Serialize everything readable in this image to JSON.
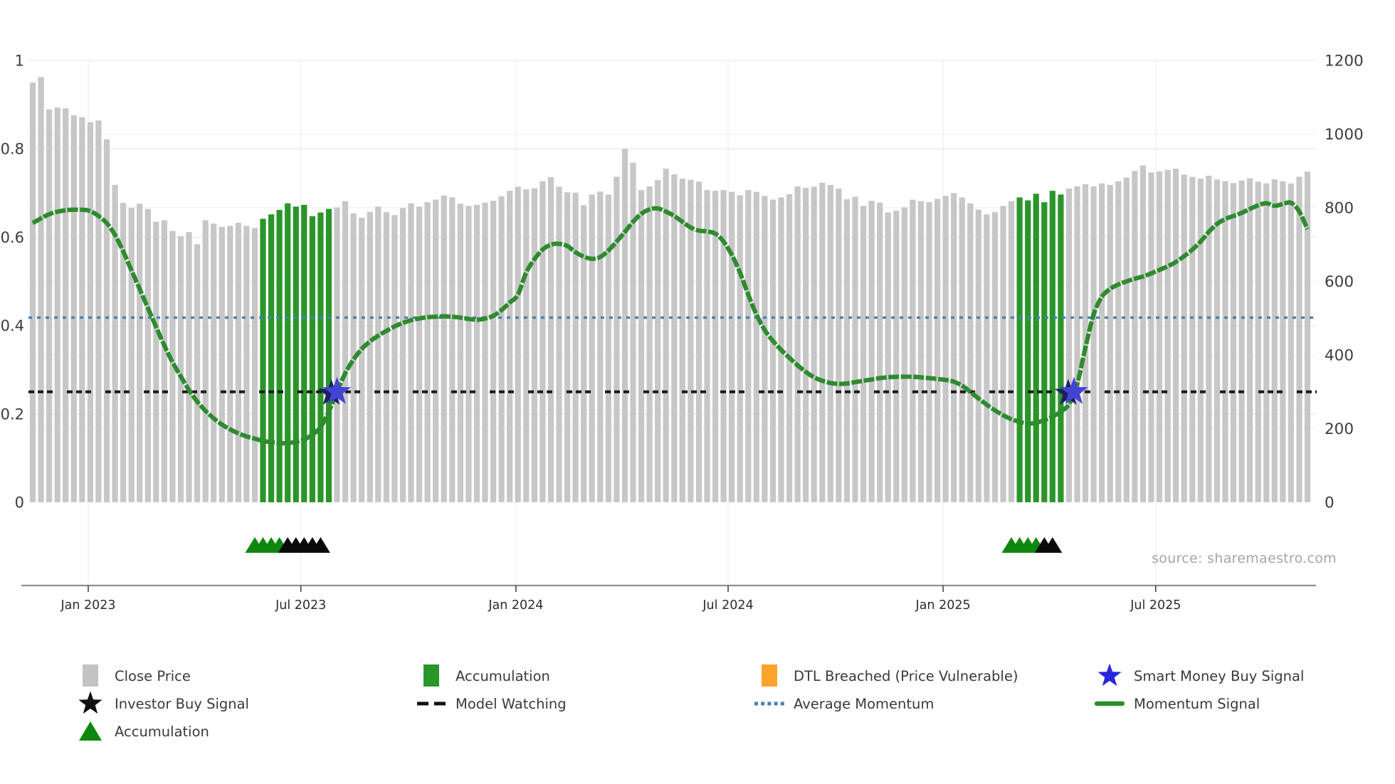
{
  "chart_data": {
    "type": "bar+line",
    "title": "",
    "source_text": "source: sharemaestro.com",
    "x_axis": {
      "tick_labels": [
        "Jan 2023",
        "Jul 2023",
        "Jan 2024",
        "Jul 2024",
        "Jan 2025",
        "Jul 2025"
      ],
      "tick_weeks": [
        6.75,
        32.6,
        58.75,
        84.55,
        110.7,
        136.55
      ]
    },
    "left_axis": {
      "range": [
        0,
        1
      ],
      "ticks": [
        0,
        0.2,
        0.4,
        0.6,
        0.8,
        1
      ],
      "tick_labels": [
        "0",
        "0.2",
        "0.4",
        "0.6",
        "0.8",
        "1"
      ]
    },
    "right_axis": {
      "range": [
        0,
        1200
      ],
      "ticks": [
        0,
        200,
        400,
        600,
        800,
        1000,
        1200
      ],
      "tick_labels": [
        "0",
        "200",
        "400",
        "600",
        "800",
        "1000",
        "1200"
      ]
    },
    "close_price": {
      "name": "Close Price",
      "values": [
        1140,
        1155,
        1067,
        1072,
        1070,
        1051,
        1046,
        1032,
        1037,
        986,
        862,
        813,
        800,
        811,
        797,
        762,
        766,
        737,
        723,
        734,
        701,
        766,
        757,
        748,
        751,
        759,
        751,
        745,
        770,
        782,
        794,
        812,
        803,
        808,
        777,
        787,
        797,
        801,
        818,
        785,
        773,
        789,
        803,
        788,
        780,
        799,
        812,
        803,
        815,
        822,
        833,
        828,
        811,
        805,
        808,
        814,
        819,
        831,
        846,
        857,
        850,
        853,
        872,
        883,
        857,
        842,
        841,
        807,
        836,
        844,
        836,
        884,
        960,
        922,
        848,
        858,
        875,
        906,
        891,
        879,
        876,
        871,
        848,
        846,
        848,
        843,
        834,
        848,
        843,
        832,
        822,
        828,
        837,
        858,
        854,
        857,
        868,
        862,
        852,
        823,
        830,
        805,
        819,
        814,
        787,
        792,
        801,
        822,
        818,
        815,
        824,
        832,
        840,
        828,
        812,
        795,
        782,
        788,
        805,
        818,
        828,
        820,
        838,
        815,
        846,
        836,
        852,
        858,
        864,
        858,
        866,
        862,
        872,
        882,
        900,
        915,
        896,
        899,
        903,
        906,
        890,
        884,
        879,
        887,
        877,
        872,
        867,
        874,
        880,
        871,
        866,
        877,
        872,
        866,
        884,
        898
      ]
    },
    "accumulation_bar_indices": [
      28,
      29,
      30,
      31,
      32,
      33,
      34,
      35,
      36,
      120,
      121,
      122,
      123,
      124,
      125
    ],
    "accumulation_periods_weeks": [
      [
        28,
        36
      ],
      [
        120,
        125
      ]
    ],
    "momentum_signal": {
      "name": "Momentum Signal",
      "points": [
        [
          0,
          0.632
        ],
        [
          2,
          0.652
        ],
        [
          4,
          0.661
        ],
        [
          6,
          0.662
        ],
        [
          7,
          0.659
        ],
        [
          8,
          0.648
        ],
        [
          9,
          0.632
        ],
        [
          10,
          0.605
        ],
        [
          11,
          0.568
        ],
        [
          12,
          0.525
        ],
        [
          13,
          0.483
        ],
        [
          14,
          0.44
        ],
        [
          15,
          0.397
        ],
        [
          16,
          0.355
        ],
        [
          17,
          0.317
        ],
        [
          18,
          0.285
        ],
        [
          19,
          0.254
        ],
        [
          20,
          0.228
        ],
        [
          21,
          0.207
        ],
        [
          22,
          0.19
        ],
        [
          23,
          0.176
        ],
        [
          24,
          0.165
        ],
        [
          25,
          0.156
        ],
        [
          26,
          0.149
        ],
        [
          27,
          0.144
        ],
        [
          28,
          0.139
        ],
        [
          29,
          0.136
        ],
        [
          30,
          0.134
        ],
        [
          31,
          0.134
        ],
        [
          32,
          0.137
        ],
        [
          33,
          0.142
        ],
        [
          34,
          0.153
        ],
        [
          35,
          0.17
        ],
        [
          36,
          0.205
        ],
        [
          37,
          0.25
        ],
        [
          38,
          0.292
        ],
        [
          39,
          0.323
        ],
        [
          40,
          0.347
        ],
        [
          41,
          0.364
        ],
        [
          42,
          0.377
        ],
        [
          43,
          0.388
        ],
        [
          44,
          0.398
        ],
        [
          45,
          0.406
        ],
        [
          46,
          0.412
        ],
        [
          47,
          0.416
        ],
        [
          48,
          0.419
        ],
        [
          49,
          0.42
        ],
        [
          50,
          0.421
        ],
        [
          51,
          0.42
        ],
        [
          52,
          0.418
        ],
        [
          53,
          0.415
        ],
        [
          54,
          0.413
        ],
        [
          55,
          0.416
        ],
        [
          56,
          0.422
        ],
        [
          57,
          0.435
        ],
        [
          58,
          0.452
        ],
        [
          59,
          0.47
        ],
        [
          60,
          0.52
        ],
        [
          61,
          0.55
        ],
        [
          62,
          0.572
        ],
        [
          63,
          0.583
        ],
        [
          64,
          0.585
        ],
        [
          65,
          0.58
        ],
        [
          66,
          0.566
        ],
        [
          67,
          0.556
        ],
        [
          68,
          0.551
        ],
        [
          69,
          0.555
        ],
        [
          70,
          0.57
        ],
        [
          71,
          0.59
        ],
        [
          72,
          0.612
        ],
        [
          73,
          0.635
        ],
        [
          74,
          0.653
        ],
        [
          75,
          0.663
        ],
        [
          76,
          0.665
        ],
        [
          77,
          0.658
        ],
        [
          78,
          0.648
        ],
        [
          79,
          0.635
        ],
        [
          80,
          0.622
        ],
        [
          81,
          0.615
        ],
        [
          82,
          0.613
        ],
        [
          83,
          0.608
        ],
        [
          84,
          0.59
        ],
        [
          85,
          0.56
        ],
        [
          86,
          0.52
        ],
        [
          87,
          0.47
        ],
        [
          88,
          0.425
        ],
        [
          89,
          0.39
        ],
        [
          90,
          0.365
        ],
        [
          91,
          0.345
        ],
        [
          92,
          0.327
        ],
        [
          93,
          0.31
        ],
        [
          94,
          0.295
        ],
        [
          95,
          0.283
        ],
        [
          96,
          0.275
        ],
        [
          97,
          0.27
        ],
        [
          98,
          0.268
        ],
        [
          99,
          0.269
        ],
        [
          100,
          0.272
        ],
        [
          101,
          0.275
        ],
        [
          102,
          0.278
        ],
        [
          103,
          0.281
        ],
        [
          104,
          0.283
        ],
        [
          105,
          0.284
        ],
        [
          107,
          0.284
        ],
        [
          109,
          0.281
        ],
        [
          110,
          0.279
        ],
        [
          111,
          0.277
        ],
        [
          112,
          0.273
        ],
        [
          113,
          0.264
        ],
        [
          114,
          0.25
        ],
        [
          115,
          0.235
        ],
        [
          116,
          0.221
        ],
        [
          117,
          0.208
        ],
        [
          118,
          0.197
        ],
        [
          119,
          0.188
        ],
        [
          120,
          0.182
        ],
        [
          121,
          0.178
        ],
        [
          122,
          0.18
        ],
        [
          123,
          0.186
        ],
        [
          124,
          0.194
        ],
        [
          125,
          0.205
        ],
        [
          126,
          0.222
        ],
        [
          127,
          0.268
        ],
        [
          128,
          0.35
        ],
        [
          129,
          0.425
        ],
        [
          130,
          0.465
        ],
        [
          131,
          0.483
        ],
        [
          132,
          0.493
        ],
        [
          133,
          0.5
        ],
        [
          134,
          0.506
        ],
        [
          135,
          0.511
        ],
        [
          136,
          0.518
        ],
        [
          137,
          0.526
        ],
        [
          138,
          0.534
        ],
        [
          139,
          0.544
        ],
        [
          140,
          0.557
        ],
        [
          141,
          0.572
        ],
        [
          142,
          0.59
        ],
        [
          143,
          0.612
        ],
        [
          144,
          0.63
        ],
        [
          145,
          0.641
        ],
        [
          146,
          0.648
        ],
        [
          147,
          0.655
        ],
        [
          148,
          0.664
        ],
        [
          149,
          0.672
        ],
        [
          150,
          0.677
        ],
        [
          151,
          0.671
        ],
        [
          152,
          0.675
        ],
        [
          153,
          0.678
        ],
        [
          154,
          0.658
        ],
        [
          155,
          0.618
        ]
      ]
    },
    "average_momentum": {
      "name": "Average Momentum",
      "value": 0.418
    },
    "model_watching": {
      "name": "Model Watching",
      "value": 0.25
    },
    "smart_money_buy_signals": [
      {
        "week": 37,
        "value": 0.25
      },
      {
        "week": 126.6,
        "value": 0.25
      }
    ],
    "investor_buy_signals": [
      {
        "week": 37,
        "value": 0.25
      },
      {
        "week": 126.6,
        "value": 0.25
      }
    ],
    "accumulation_triangle_weeks": [
      27,
      28,
      29,
      30,
      119,
      120,
      121,
      122
    ],
    "investor_triangle_weeks": [
      31,
      32,
      33,
      34,
      35,
      123,
      124
    ],
    "colors": {
      "bar_gray": "#c7c7c7",
      "bar_green": "#2a962a",
      "momentum_line": "#2e8b2e",
      "average_momentum": "#4682B4",
      "model_watching": "#1a1a1a",
      "smart_money_star": "#4444d4",
      "investor_star": "#202060",
      "triangle_green": "#0E870E",
      "triangle_black": "#0b0b0b",
      "axis_line": "#8f8f8f",
      "tick_text": "#3c3c3c",
      "x_label_text": "#2d2d2d",
      "source_text": "#a5a5a5",
      "grid_left": "#e7ebf2",
      "grid_right": "#eef1f5",
      "grid_vertical": "#ededed"
    }
  },
  "legend": {
    "items": [
      {
        "key": "close-price",
        "row": 0,
        "col": 0,
        "marker": "square",
        "color": "#c3c3c3",
        "label": "Close Price"
      },
      {
        "key": "accumulation-bar",
        "row": 0,
        "col": 1,
        "marker": "square",
        "color": "#2a962a",
        "label": "Accumulation"
      },
      {
        "key": "dtl-breached",
        "row": 0,
        "col": 2,
        "marker": "square",
        "color": "#FBA32A",
        "label": "DTL Breached (Price Vulnerable)"
      },
      {
        "key": "smart-money-buy",
        "row": 0,
        "col": 3,
        "marker": "star",
        "color": "#2727DF",
        "label": "Smart Money Buy Signal"
      },
      {
        "key": "investor-buy",
        "row": 1,
        "col": 0,
        "marker": "star",
        "color": "#111111",
        "label": "Investor Buy Signal"
      },
      {
        "key": "model-watching",
        "row": 1,
        "col": 1,
        "marker": "dashes",
        "color": "#111111",
        "label": "Model Watching"
      },
      {
        "key": "average-momentum",
        "row": 1,
        "col": 2,
        "marker": "dots",
        "color": "#4682B4",
        "label": "Average Momentum"
      },
      {
        "key": "momentum-signal",
        "row": 1,
        "col": 3,
        "marker": "line",
        "color": "#2a8f2a",
        "label": "Momentum Signal"
      },
      {
        "key": "accumulation-tri",
        "row": 2,
        "col": 0,
        "marker": "triangle",
        "color": "#0E870E",
        "label": "Accumulation"
      }
    ]
  }
}
